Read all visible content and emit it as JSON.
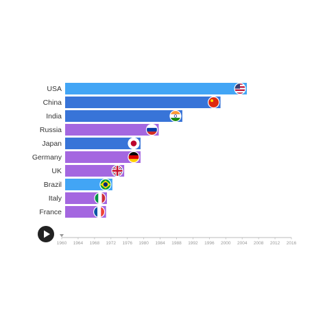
{
  "chart_data": {
    "type": "bar",
    "orientation": "horizontal",
    "animated_bar_race": true,
    "categories": [
      "USA",
      "China",
      "India",
      "Russia",
      "Japan",
      "Germany",
      "UK",
      "Brazil",
      "Italy",
      "France"
    ],
    "values": [
      100,
      85.5,
      64.5,
      51.5,
      41.5,
      41.5,
      32.5,
      26,
      23,
      22.5
    ],
    "bar_colors": [
      "#42a5f5",
      "#3874d8",
      "#3874d8",
      "#a467e0",
      "#3874d8",
      "#a467e0",
      "#a467e0",
      "#42a5f5",
      "#a467e0",
      "#a467e0"
    ],
    "flag_icons": [
      "usa-flag-icon",
      "china-flag-icon",
      "india-flag-icon",
      "russia-flag-icon",
      "japan-flag-icon",
      "germany-flag-icon",
      "uk-flag-icon",
      "brazil-flag-icon",
      "italy-flag-icon",
      "france-flag-icon"
    ],
    "xlim": [
      0,
      100
    ],
    "timeline": {
      "ticks": [
        "1960",
        "1964",
        "1968",
        "1972",
        "1976",
        "1980",
        "1984",
        "1988",
        "1992",
        "1996",
        "2000",
        "2004",
        "2008",
        "2012",
        "2016"
      ],
      "current": "1960"
    },
    "grid": false,
    "legend": "none"
  },
  "controls": {
    "play_icon": "play-icon"
  },
  "colors": {
    "blue": "#42a5f5",
    "dark_blue": "#3874d8",
    "purple": "#a467e0",
    "axis": "#bbbbbb"
  }
}
